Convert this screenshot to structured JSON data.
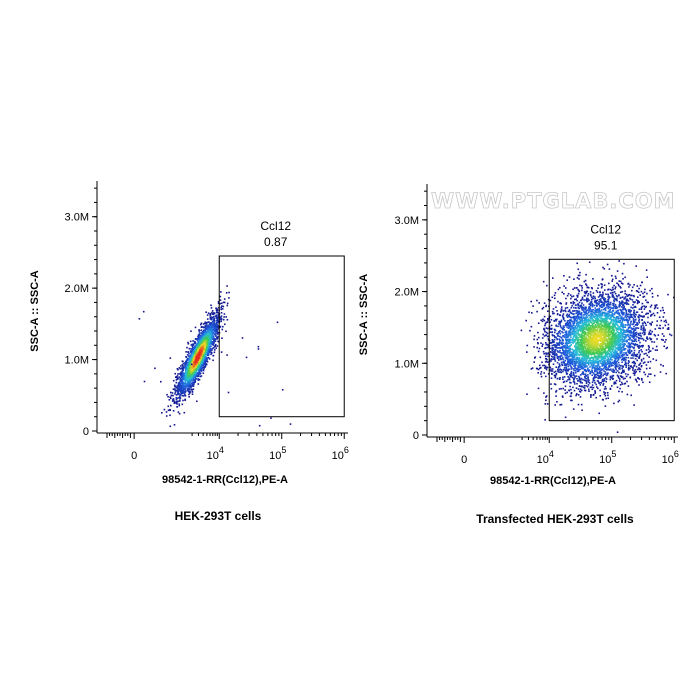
{
  "chart_data": [
    {
      "type": "scatter",
      "caption": "HEK-293T cells",
      "xlabel": "98542-1-RR(Ccl12),PE-A",
      "ylabel": "SSC-A :: SSC-A",
      "x_scale": "biexponential",
      "y_ticks": [
        {
          "value": 0,
          "label": "0"
        },
        {
          "value": 1000000,
          "label": "1.0M"
        },
        {
          "value": 2000000,
          "label": "2.0M"
        },
        {
          "value": 3000000,
          "label": "3.0M"
        }
      ],
      "x_ticks": [
        {
          "value": 0,
          "label": "0",
          "sup": ""
        },
        {
          "value": 10000,
          "label": "10",
          "sup": "4"
        },
        {
          "value": 100000,
          "label": "10",
          "sup": "5"
        },
        {
          "value": 1000000,
          "label": "10",
          "sup": "6"
        }
      ],
      "ylim": [
        0,
        3500000
      ],
      "gate": {
        "name": "Ccl12",
        "value": "0.87",
        "x_range": [
          10000,
          1000000
        ],
        "y_range": [
          200000,
          2450000
        ]
      },
      "population": {
        "x_center": 2800,
        "y_center": 1050000,
        "note": "dense cluster left of gate"
      },
      "watermark": ""
    },
    {
      "type": "scatter",
      "caption": "Transfected HEK-293T cells",
      "xlabel": "98542-1-RR(Ccl12),PE-A",
      "ylabel": "SSC-A :: SSC-A",
      "x_scale": "biexponential",
      "y_ticks": [
        {
          "value": 0,
          "label": "0"
        },
        {
          "value": 1000000,
          "label": "1.0M"
        },
        {
          "value": 2000000,
          "label": "2.0M"
        },
        {
          "value": 3000000,
          "label": "3.0M"
        }
      ],
      "x_ticks": [
        {
          "value": 0,
          "label": "0",
          "sup": ""
        },
        {
          "value": 10000,
          "label": "10",
          "sup": "4"
        },
        {
          "value": 100000,
          "label": "10",
          "sup": "5"
        },
        {
          "value": 1000000,
          "label": "10",
          "sup": "6"
        }
      ],
      "ylim": [
        0,
        3500000
      ],
      "gate": {
        "name": "Ccl12",
        "value": "95.1",
        "x_range": [
          10000,
          1000000
        ],
        "y_range": [
          200000,
          2450000
        ]
      },
      "population": {
        "x_center": 60000,
        "y_center": 1350000,
        "note": "broad population inside gate"
      },
      "watermark": "WWW.PTGLAB.COM"
    }
  ]
}
